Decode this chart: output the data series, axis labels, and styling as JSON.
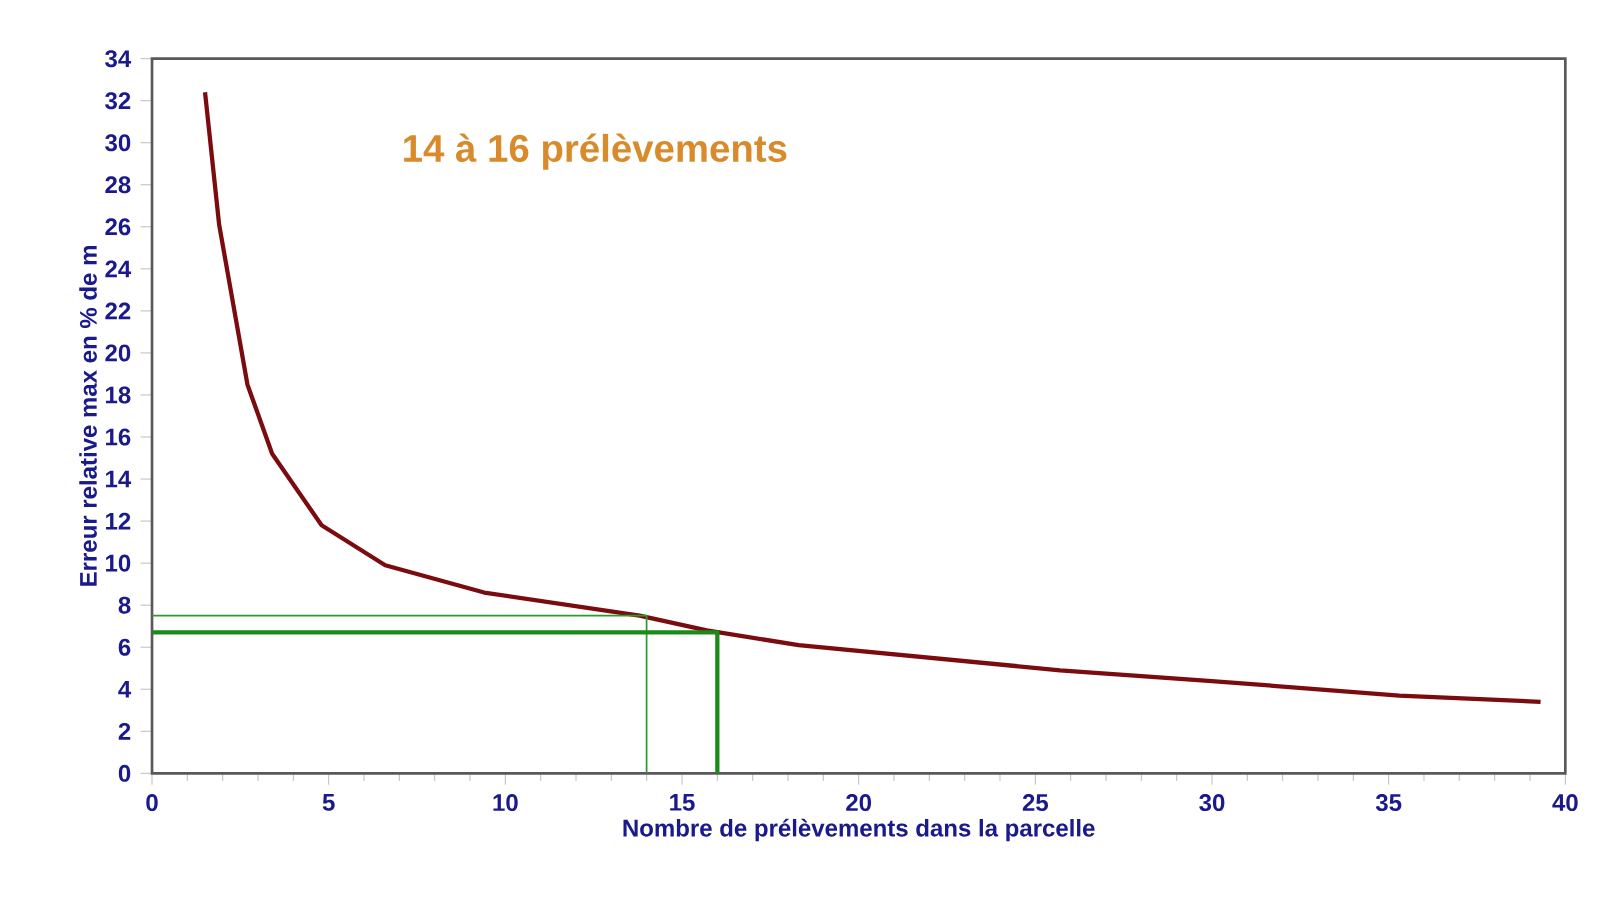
{
  "chart_data": {
    "type": "line",
    "xlabel": "Nombre de prélèvements dans la parcelle",
    "ylabel": "Erreur relative max en % de m",
    "annotations": [
      "14 à 16 prélèvements"
    ],
    "series": [
      {
        "color": "#7a0c10",
        "x": [
          1.5,
          1.9,
          2.7,
          3.4,
          4.8,
          6.6,
          9.4,
          13.8,
          15.7,
          18.3,
          25.7,
          29.9,
          35.3,
          39.3
        ],
        "values": [
          32.4,
          26.1,
          18.5,
          15.2,
          11.8,
          9.9,
          8.6,
          7.5,
          6.8,
          6.1,
          4.9,
          4.4,
          3.7,
          3.4
        ]
      },
      {
        "color": "#2e9a2e",
        "x": [
          0,
          14,
          14
        ],
        "values": [
          7.5,
          7.5,
          0
        ]
      },
      {
        "color": "#1a8a1a",
        "x": [
          0,
          16,
          16
        ],
        "values": [
          6.7,
          6.7,
          0
        ]
      }
    ],
    "xlim": [
      0,
      40
    ],
    "ylim": [
      0,
      34
    ],
    "xticks": [
      0,
      5,
      10,
      15,
      20,
      25,
      30,
      35,
      40
    ],
    "yticks": [
      0,
      2,
      4,
      6,
      8,
      10,
      12,
      14,
      16,
      18,
      20,
      22,
      24,
      26,
      28,
      30,
      32,
      34
    ],
    "grid": false,
    "marker": "none",
    "line_style": "solid"
  }
}
